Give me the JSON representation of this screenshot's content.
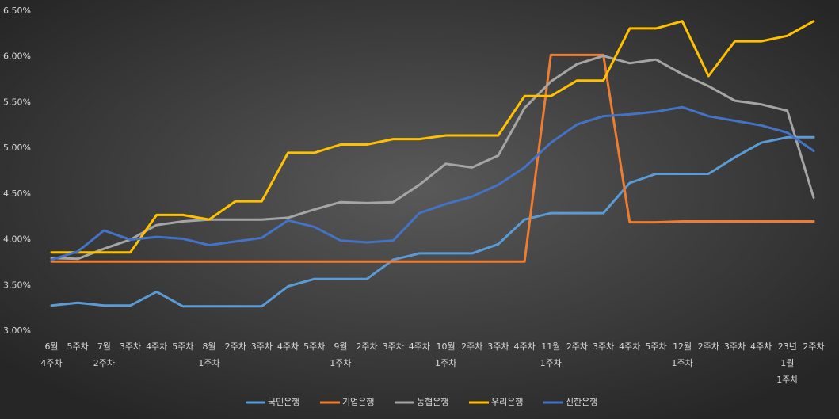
{
  "chart_data": {
    "type": "line",
    "categories": [
      [
        "6월",
        "4주차"
      ],
      [
        "5주차"
      ],
      [
        "7월",
        "2주차"
      ],
      [
        "3주차"
      ],
      [
        "4주차"
      ],
      [
        "5주차"
      ],
      [
        "8월",
        "1주차"
      ],
      [
        "2주차"
      ],
      [
        "3주차"
      ],
      [
        "4주차"
      ],
      [
        "5주차"
      ],
      [
        "9월",
        "1주차"
      ],
      [
        "2주차"
      ],
      [
        "3주차"
      ],
      [
        "4주차"
      ],
      [
        "10월",
        "1주차"
      ],
      [
        "2주차"
      ],
      [
        "3주차"
      ],
      [
        "4주차"
      ],
      [
        "11월",
        "1주차"
      ],
      [
        "2주차"
      ],
      [
        "3주차"
      ],
      [
        "4주차"
      ],
      [
        "5주차"
      ],
      [
        "12월",
        "1주차"
      ],
      [
        "2주차"
      ],
      [
        "3주차"
      ],
      [
        "4주차"
      ],
      [
        "23년",
        "1월",
        "1주차"
      ],
      [
        "2주차"
      ]
    ],
    "series": [
      {
        "name": "국민은행",
        "color": "#5b9bd5",
        "values": [
          3.28,
          3.31,
          3.28,
          3.28,
          3.43,
          3.27,
          3.27,
          3.27,
          3.27,
          3.49,
          3.57,
          3.57,
          3.57,
          3.78,
          3.85,
          3.85,
          3.85,
          3.95,
          4.22,
          4.29,
          4.29,
          4.29,
          4.62,
          4.72,
          4.72,
          4.72,
          4.9,
          5.06,
          5.12,
          5.12
        ]
      },
      {
        "name": "기업은행",
        "color": "#ed7d31",
        "values": [
          3.76,
          3.76,
          3.76,
          3.76,
          3.76,
          3.76,
          3.76,
          3.76,
          3.76,
          3.76,
          3.76,
          3.76,
          3.76,
          3.76,
          3.76,
          3.76,
          3.76,
          3.76,
          3.76,
          6.02,
          6.02,
          6.02,
          4.19,
          4.19,
          4.2,
          4.2,
          4.2,
          4.2,
          4.2,
          4.2
        ]
      },
      {
        "name": "농협은행",
        "color": "#a5a5a5",
        "values": [
          3.8,
          3.79,
          3.9,
          4.0,
          4.16,
          4.2,
          4.22,
          4.22,
          4.22,
          4.24,
          4.33,
          4.41,
          4.4,
          4.41,
          4.6,
          4.83,
          4.79,
          4.92,
          5.44,
          5.73,
          5.92,
          6.01,
          5.93,
          5.97,
          5.81,
          5.68,
          5.52,
          5.48,
          5.41,
          4.46
        ]
      },
      {
        "name": "우리은행",
        "color": "#ffc000",
        "values": [
          3.86,
          3.86,
          3.86,
          3.86,
          4.27,
          4.27,
          4.22,
          4.42,
          4.42,
          4.95,
          4.95,
          5.04,
          5.04,
          5.1,
          5.1,
          5.14,
          5.14,
          5.14,
          5.57,
          5.57,
          5.74,
          5.74,
          6.31,
          6.31,
          6.39,
          5.79,
          6.17,
          6.17,
          6.23,
          6.39
        ]
      },
      {
        "name": "신한은행",
        "color": "#4472c4",
        "values": [
          3.78,
          3.87,
          4.1,
          4.0,
          4.03,
          4.01,
          3.94,
          3.98,
          4.02,
          4.21,
          4.14,
          3.99,
          3.97,
          3.99,
          4.29,
          4.39,
          4.47,
          4.6,
          4.79,
          5.06,
          5.26,
          5.35,
          5.37,
          5.4,
          5.45,
          5.35,
          5.3,
          5.25,
          5.17,
          4.97
        ]
      }
    ],
    "ylim": [
      3.0,
      6.5
    ],
    "yticks": [
      {
        "value": 3.0,
        "label": "3.00%"
      },
      {
        "value": 3.5,
        "label": "3.50%"
      },
      {
        "value": 4.0,
        "label": "4.00%"
      },
      {
        "value": 4.5,
        "label": "4.50%"
      },
      {
        "value": 5.0,
        "label": "5.00%"
      },
      {
        "value": 5.5,
        "label": "5.50%"
      },
      {
        "value": 6.0,
        "label": "6.00%"
      },
      {
        "value": 6.5,
        "label": "6.50%"
      }
    ],
    "grid": false,
    "legend": "bottom"
  }
}
